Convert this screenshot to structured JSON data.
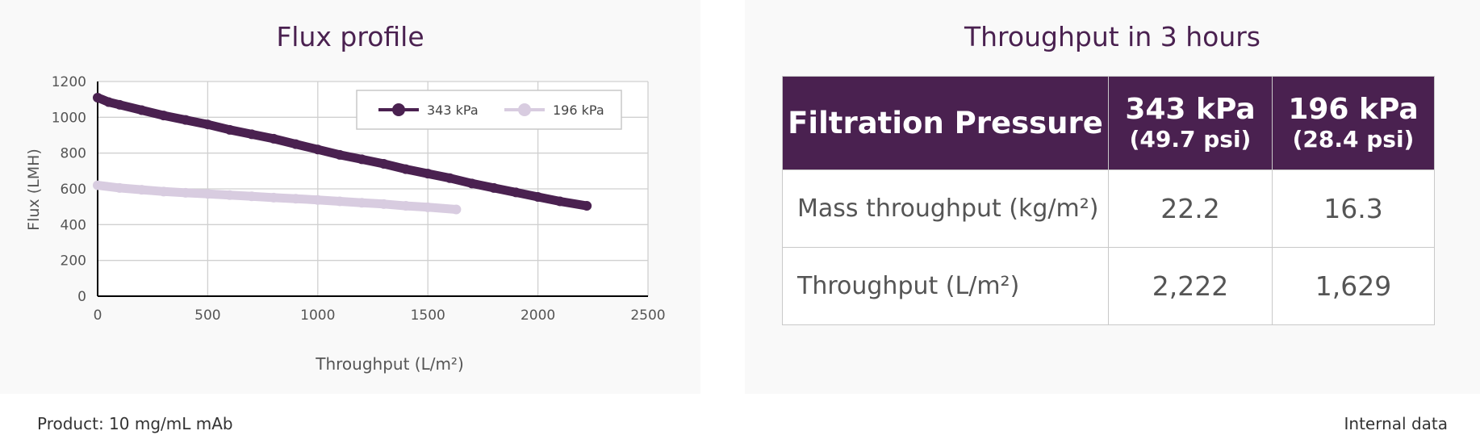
{
  "chart_data": {
    "type": "line",
    "title": "Flux profile",
    "xlabel": "Throughput (L/m²)",
    "ylabel": "Flux (LMH)",
    "xlim": [
      0,
      2500
    ],
    "ylim": [
      0,
      1200
    ],
    "x_ticks": [
      "0",
      "500",
      "1000",
      "1500",
      "2000",
      "2500"
    ],
    "y_ticks": [
      "0",
      "200",
      "400",
      "600",
      "800",
      "1000",
      "1200"
    ],
    "grid": true,
    "legend_position": "top-right",
    "series": [
      {
        "name": "343 kPa",
        "color": "#4a2150",
        "x": [
          0,
          50,
          100,
          200,
          300,
          400,
          500,
          600,
          700,
          800,
          900,
          1000,
          1100,
          1200,
          1300,
          1400,
          1500,
          1600,
          1700,
          1800,
          1900,
          2000,
          2100,
          2222
        ],
        "y": [
          1110,
          1085,
          1070,
          1040,
          1010,
          985,
          960,
          930,
          905,
          880,
          850,
          820,
          790,
          765,
          740,
          710,
          685,
          660,
          630,
          605,
          580,
          555,
          530,
          505
        ]
      },
      {
        "name": "196 kPa",
        "color": "#d8cce0",
        "x": [
          0,
          100,
          200,
          300,
          400,
          500,
          600,
          700,
          800,
          900,
          1000,
          1100,
          1200,
          1300,
          1400,
          1500,
          1629
        ],
        "y": [
          620,
          605,
          595,
          585,
          578,
          572,
          565,
          558,
          551,
          545,
          538,
          530,
          522,
          515,
          505,
          497,
          485
        ]
      }
    ]
  },
  "table": {
    "title": "Throughput in 3 hours",
    "header": {
      "label": "Filtration Pressure",
      "col1_kpa": "343 kPa",
      "col1_psi": "(49.7 psi)",
      "col2_kpa": "196 kPa",
      "col2_psi": "(28.4 psi)"
    },
    "rows": [
      {
        "label": "Mass throughput (kg/m²)",
        "v1": "22.2",
        "v2": "16.3"
      },
      {
        "label": "Throughput (L/m²)",
        "v1": "2,222",
        "v2": "1,629"
      }
    ]
  },
  "footer": {
    "product": "Product: 10 mg/mL mAb",
    "note": "Internal data"
  }
}
